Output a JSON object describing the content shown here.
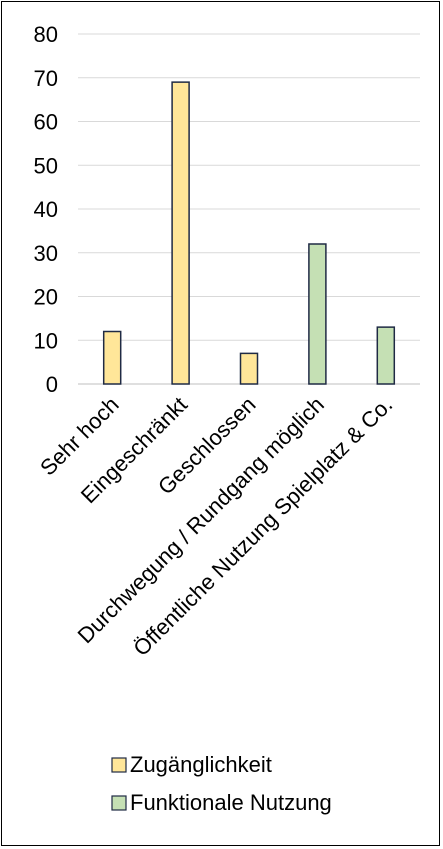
{
  "chart_data": {
    "type": "bar",
    "title": "",
    "xlabel": "",
    "ylabel": "",
    "ylim": [
      0,
      80
    ],
    "yticks": [
      0,
      10,
      20,
      30,
      40,
      50,
      60,
      70,
      80
    ],
    "grid": true,
    "legend_position": "bottom",
    "categories": [
      "Sehr hoch",
      "Eingeschränkt",
      "Geschlossen",
      "Durchwegung / Rundgang möglich",
      "Öffentliche Nutzung Spielplatz & Co."
    ],
    "series": [
      {
        "name": "Zugänglichkeit",
        "color": "#FFE699",
        "values": [
          12,
          69,
          7,
          null,
          null
        ]
      },
      {
        "name": "Funktionale Nutzung",
        "color": "#C5E0B4",
        "values": [
          null,
          null,
          null,
          32,
          13
        ]
      }
    ],
    "bar_outline_color": "#1F2A44"
  }
}
